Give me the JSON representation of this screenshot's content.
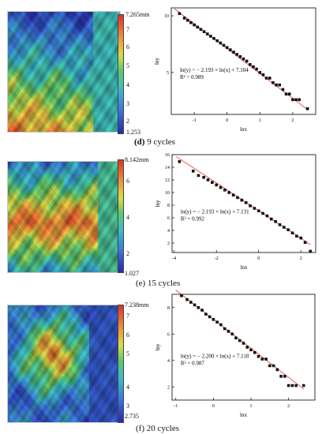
{
  "panels": [
    {
      "id": "d",
      "caption_letter": "(d)",
      "caption_text": " 9 cycles",
      "colorbar": {
        "max_label": "7.265mm",
        "min_label": "1.253",
        "ticks": [
          "7",
          "6",
          "5",
          "4",
          "3",
          "2"
        ]
      },
      "surface_colors": {
        "left": "#5060c8",
        "right": "#3aa88c"
      }
    },
    {
      "id": "e",
      "caption_letter": "(e)",
      "caption_text": " 15 cycles",
      "colorbar": {
        "max_label": "8.142mm",
        "min_label": "1.027",
        "ticks": [
          "6",
          "4",
          "2"
        ]
      },
      "surface_colors": {
        "left": "#4a64c8",
        "right": "#3ab890"
      }
    },
    {
      "id": "f",
      "caption_letter": "(f)",
      "caption_text": " 20 cycles",
      "colorbar": {
        "max_label": "7.238mm",
        "min_label": "2.735",
        "ticks": [
          "7",
          "6",
          "5",
          "4",
          "3"
        ]
      },
      "surface_colors": {
        "left": "#4a86c8",
        "right": "#4a60c0"
      }
    }
  ],
  "chart_data": [
    {
      "type": "scatter",
      "title": "",
      "xlabel": "lnx",
      "ylabel": "lny",
      "xlim": [
        -1.7,
        2.7
      ],
      "ylim": [
        1.3,
        10.7
      ],
      "xticks": [
        -1,
        0,
        1,
        2
      ],
      "yticks": [
        5,
        10
      ],
      "grid": false,
      "annotation": [
        "ln(y) = − 2.193 × ln(x) + 7.104",
        "R² = 0.989"
      ],
      "fit": {
        "slope": -2.193,
        "intercept": 7.104
      },
      "x": [
        -1.45,
        -1.3,
        -1.2,
        -1.1,
        -1.0,
        -0.9,
        -0.8,
        -0.7,
        -0.6,
        -0.5,
        -0.4,
        -0.3,
        -0.2,
        -0.1,
        0.0,
        0.1,
        0.2,
        0.3,
        0.4,
        0.5,
        0.6,
        0.7,
        0.8,
        0.9,
        1.0,
        1.1,
        1.2,
        1.3,
        1.4,
        1.5,
        1.6,
        1.7,
        1.8,
        1.9,
        2.0,
        2.1,
        2.2,
        2.45
      ],
      "y": [
        10.2,
        9.8,
        9.6,
        9.4,
        9.2,
        9.0,
        8.8,
        8.6,
        8.4,
        8.2,
        8.0,
        7.8,
        7.6,
        7.4,
        7.2,
        7.0,
        6.8,
        6.6,
        6.4,
        6.2,
        6.0,
        5.7,
        5.5,
        5.3,
        5.0,
        4.8,
        4.5,
        4.5,
        4.1,
        3.9,
        3.9,
        3.5,
        3.1,
        3.1,
        2.6,
        2.6,
        2.6,
        1.8
      ]
    },
    {
      "type": "scatter",
      "title": "",
      "xlabel": "lnx",
      "ylabel": "lny",
      "xlim": [
        -4.1,
        2.7
      ],
      "ylim": [
        0.5,
        16
      ],
      "xticks": [
        -4,
        -2,
        0,
        2
      ],
      "yticks": [
        2,
        4,
        6,
        8,
        10,
        12,
        14,
        16
      ],
      "grid": false,
      "annotation": [
        "ln(y) = − 2.193 × ln(x) + 7.131",
        "R² = 0.992"
      ],
      "fit": {
        "slope": -2.193,
        "intercept": 7.131
      },
      "x": [
        -3.75,
        -3.1,
        -2.85,
        -2.6,
        -2.4,
        -2.2,
        -2.0,
        -1.8,
        -1.6,
        -1.4,
        -1.2,
        -1.0,
        -0.8,
        -0.6,
        -0.4,
        -0.2,
        0.0,
        0.2,
        0.4,
        0.6,
        0.8,
        1.0,
        1.2,
        1.4,
        1.6,
        1.8,
        2.0,
        2.2,
        2.45
      ],
      "y": [
        14.9,
        13.4,
        12.7,
        12.4,
        12.0,
        11.6,
        11.2,
        10.8,
        10.4,
        10.0,
        9.6,
        9.2,
        8.8,
        8.4,
        7.9,
        7.5,
        7.1,
        6.7,
        6.3,
        5.8,
        5.4,
        4.9,
        4.5,
        4.1,
        3.6,
        3.1,
        2.8,
        2.1,
        0.7
      ]
    },
    {
      "type": "scatter",
      "title": "",
      "xlabel": "lnx",
      "ylabel": "lny",
      "xlim": [
        -1.1,
        2.7
      ],
      "ylim": [
        1.0,
        9.0
      ],
      "xticks": [
        -1,
        0,
        1,
        2
      ],
      "yticks": [
        2,
        4,
        6,
        8
      ],
      "grid": false,
      "annotation": [
        "ln(y) = − 2.200 × ln(x) + 7.118",
        "R² = 0.987"
      ],
      "fit": {
        "slope": -2.2,
        "intercept": 7.118
      },
      "x": [
        -0.85,
        -0.7,
        -0.6,
        -0.5,
        -0.4,
        -0.3,
        -0.2,
        -0.1,
        0.0,
        0.1,
        0.2,
        0.3,
        0.4,
        0.5,
        0.6,
        0.7,
        0.8,
        0.9,
        1.0,
        1.1,
        1.2,
        1.3,
        1.4,
        1.5,
        1.6,
        1.7,
        1.8,
        1.9,
        2.0,
        2.1,
        2.2,
        2.4
      ],
      "y": [
        8.9,
        8.6,
        8.4,
        8.2,
        8.0,
        7.8,
        7.5,
        7.3,
        7.1,
        6.9,
        6.7,
        6.4,
        6.2,
        6.0,
        5.7,
        5.5,
        5.3,
        5.0,
        4.8,
        4.6,
        4.3,
        4.1,
        4.1,
        3.6,
        3.6,
        3.3,
        2.8,
        2.8,
        2.1,
        2.1,
        2.1,
        2.1
      ]
    }
  ]
}
